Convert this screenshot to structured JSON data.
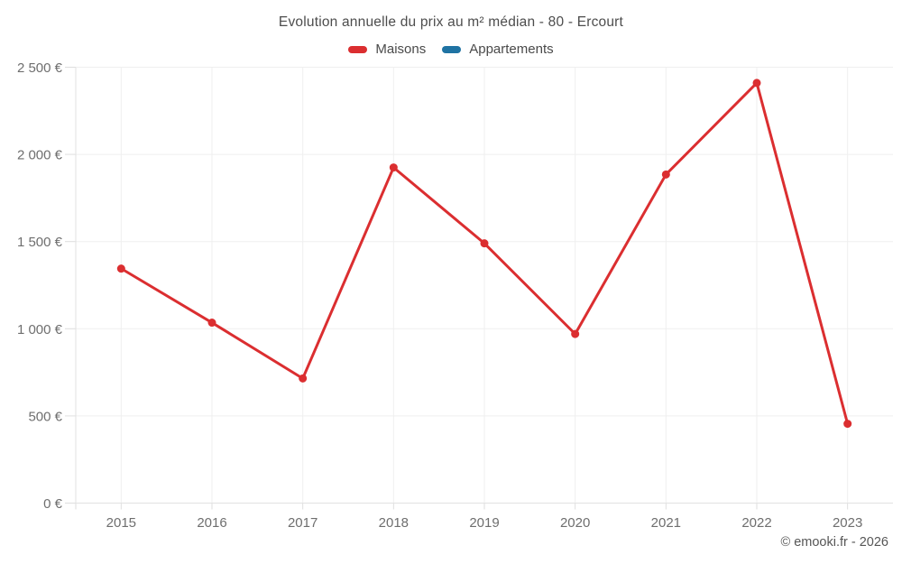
{
  "chart_data": {
    "type": "line",
    "title": "Evolution annuelle du prix au m² médian - 80 - Ercourt",
    "categories": [
      "2015",
      "2016",
      "2017",
      "2018",
      "2019",
      "2020",
      "2021",
      "2022",
      "2023"
    ],
    "series": [
      {
        "name": "Maisons",
        "color": "#db2e30",
        "values": [
          1345,
          1035,
          715,
          1925,
          1490,
          970,
          1885,
          2410,
          455
        ]
      },
      {
        "name": "Appartements",
        "color": "#1f73a3",
        "values": []
      }
    ],
    "xlabel": "",
    "ylabel": "",
    "ylim": [
      0,
      2500
    ],
    "y_ticks": [
      0,
      500,
      1000,
      1500,
      2000,
      2500
    ],
    "y_tick_labels": [
      "0 €",
      "500 €",
      "1 000 €",
      "1 500 €",
      "2 000 €",
      "2 500 €"
    ],
    "grid": true,
    "legend_position": "top",
    "currency": "€"
  },
  "footer": {
    "copyright": "© emooki.fr - 2026"
  }
}
